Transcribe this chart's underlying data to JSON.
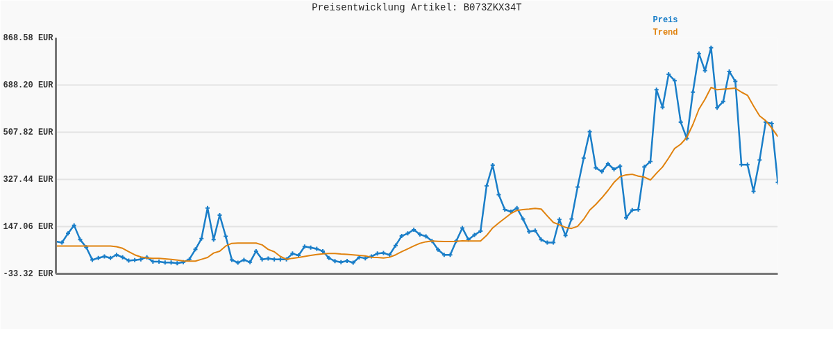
{
  "chart_data": {
    "type": "line",
    "title": "Preisentwicklung Artikel: B073ZKX34T",
    "categories": [
      null,
      null,
      null,
      null,
      null,
      null,
      null,
      null,
      null,
      null,
      null,
      null,
      null,
      null,
      null,
      null,
      null,
      null,
      null,
      null,
      null,
      null,
      null,
      null,
      null,
      null,
      null,
      null,
      null,
      null,
      null,
      null,
      null,
      null,
      null,
      null,
      null,
      null,
      null,
      null,
      null,
      null,
      null,
      null,
      null,
      null,
      null,
      null,
      null,
      null,
      null,
      null,
      null,
      null,
      null,
      null,
      null,
      null,
      null,
      null,
      null,
      null,
      null,
      null,
      null,
      null,
      null,
      null,
      null,
      null,
      null,
      null,
      null,
      null,
      null,
      null,
      null,
      null,
      null,
      null,
      null,
      null,
      null,
      null,
      null,
      null,
      null,
      null,
      null,
      null,
      null,
      null,
      null,
      null,
      null,
      null,
      null,
      null,
      null,
      null,
      null,
      null,
      null,
      null,
      null,
      null,
      null,
      null,
      null,
      null,
      null,
      null,
      null,
      null,
      null,
      null,
      null,
      null,
      null,
      null
    ],
    "series": [
      {
        "name": "Preis",
        "color": "#1a7ec8",
        "marker": "cross",
        "values": [
          90,
          86,
          121,
          152,
          97,
          68,
          20,
          27,
          33,
          27,
          39,
          30,
          17,
          19,
          22,
          30,
          13,
          13,
          10,
          10,
          7,
          11,
          22,
          60,
          101,
          218,
          97,
          191,
          110,
          20,
          9,
          20,
          11,
          53,
          22,
          25,
          22,
          22,
          22,
          44,
          37,
          71,
          67,
          62,
          53,
          27,
          15,
          11,
          16,
          9,
          30,
          26,
          33,
          44,
          46,
          39,
          75,
          111,
          121,
          135,
          117,
          110,
          92,
          59,
          39,
          39,
          92,
          142,
          97,
          115,
          130,
          303,
          382,
          269,
          212,
          204,
          218,
          176,
          128,
          132,
          97,
          86,
          86,
          174,
          113,
          176,
          298,
          409,
          510,
          372,
          357,
          387,
          366,
          378,
          181,
          210,
          212,
          375,
          396,
          670,
          603,
          729,
          705,
          546,
          484,
          661,
          808,
          743,
          831,
          601,
          625,
          740,
          702,
          384,
          384,
          282,
          402,
          546,
          541,
          316
        ]
      },
      {
        "name": "Trend",
        "color": "#e0820e",
        "marker": "none",
        "values": [
          73,
          73,
          73,
          73,
          73,
          73,
          73,
          73,
          73,
          73,
          70,
          64,
          51,
          39,
          31,
          27,
          26,
          26,
          24,
          22,
          19,
          16,
          15,
          15,
          22,
          29,
          46,
          53,
          73,
          83,
          84,
          84,
          84,
          84,
          77,
          60,
          51,
          33,
          22,
          26,
          29,
          33,
          37,
          40,
          43,
          44,
          44,
          42,
          41,
          39,
          37,
          35,
          30,
          29,
          27,
          30,
          39,
          51,
          62,
          73,
          83,
          89,
          92,
          91,
          90,
          90,
          91,
          93,
          92,
          92,
          92,
          113,
          142,
          161,
          179,
          197,
          209,
          212,
          214,
          217,
          214,
          188,
          163,
          154,
          144,
          140,
          148,
          175,
          210,
          232,
          257,
          285,
          316,
          338,
          345,
          347,
          340,
          336,
          325,
          351,
          375,
          409,
          446,
          462,
          488,
          537,
          596,
          634,
          679,
          670,
          672,
          674,
          676,
          661,
          649,
          608,
          570,
          552,
          524,
          491
        ]
      }
    ],
    "ylim": [
      -33.32,
      868.58
    ],
    "yticks": [
      {
        "value": -33.32,
        "label": "-33.32 EUR"
      },
      {
        "value": 147.06,
        "label": "147.06 EUR"
      },
      {
        "value": 327.44,
        "label": "327.44 EUR"
      },
      {
        "value": 507.82,
        "label": "507.82 EUR"
      },
      {
        "value": 688.2,
        "label": "688.20 EUR"
      },
      {
        "value": 868.58,
        "label": "868.58 EUR"
      }
    ],
    "grid": "y",
    "tick_labels": "y",
    "line_style": "solid"
  }
}
